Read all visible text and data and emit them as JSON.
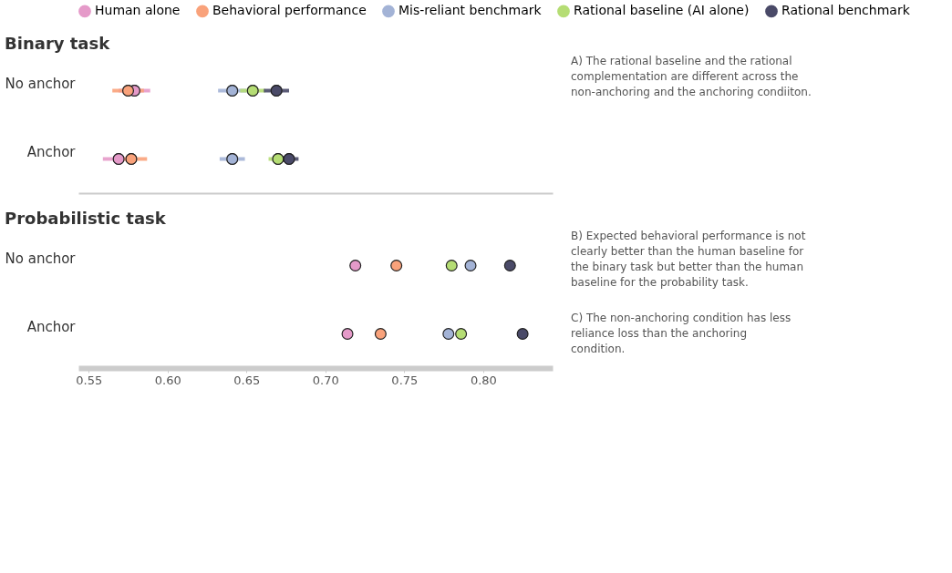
{
  "chart_data": [
    {
      "type": "scatter",
      "title": "Binary task",
      "categories": [
        "No anchor",
        "Anchor"
      ],
      "orientation": "horizontal",
      "series": [
        {
          "name": "Human alone",
          "color": "#e59ac9",
          "values": [
            0.579,
            0.569
          ],
          "errors": [
            0.01,
            0.01
          ]
        },
        {
          "name": "Behavioral performance",
          "color": "#f9a27b",
          "values": [
            0.575,
            0.577
          ],
          "errors": [
            0.01,
            0.01
          ]
        },
        {
          "name": "Mis-reliant benchmark",
          "color": "#a3b3d6",
          "values": [
            0.641,
            0.641
          ],
          "errors": [
            0.009,
            0.008
          ]
        },
        {
          "name": "Rational baseline (AI alone)",
          "color": "#b5dd74",
          "values": [
            0.654,
            0.67
          ],
          "errors": [
            0.008,
            0.006
          ]
        },
        {
          "name": "Rational benchmark",
          "color": "#4a4a68",
          "values": [
            0.669,
            0.677
          ],
          "errors": [
            0.008,
            0.006
          ]
        }
      ],
      "xlim": [
        0.5435,
        0.844
      ],
      "xticks": [
        0.55,
        0.6,
        0.65,
        0.7,
        0.75,
        0.8
      ],
      "tick_labels": "y",
      "legend": "top",
      "marker": "circle",
      "annotations": [
        "A) The rational baseline and the rational complementation are different across the non-anchoring and the anchoring condiiton."
      ]
    },
    {
      "type": "scatter",
      "title": "Probabilistic task",
      "categories": [
        "No anchor",
        "Anchor"
      ],
      "orientation": "horizontal",
      "series": [
        {
          "color": "#e59ac9",
          "values": [
            0.719,
            0.714
          ]
        },
        {
          "color": "#f9a27b",
          "values": [
            0.745,
            0.735
          ]
        },
        {
          "color": "#a3b3d6",
          "values": [
            0.792,
            0.778
          ]
        },
        {
          "color": "#b5dd74",
          "values": [
            0.78,
            0.786
          ]
        },
        {
          "color": "#4a4a68",
          "values": [
            0.817,
            0.825
          ]
        }
      ],
      "xlim": [
        0.5435,
        0.844
      ],
      "xticks": [
        0.55,
        {
          "value": 0.6,
          "label": "0.60"
        },
        0.65,
        {
          "value": 0.7,
          "label": "0.70"
        },
        0.75,
        {
          "value": 0.8,
          "label": "0.80"
        }
      ],
      "marker": "circle",
      "annotations": [
        "B) Expected behavioral performance is not clearly better than the human baseline for the binary task but better than the human baseline for the probability task.",
        "C) The non-anchoring condition has less reliance loss than the anchoring condition."
      ]
    }
  ]
}
